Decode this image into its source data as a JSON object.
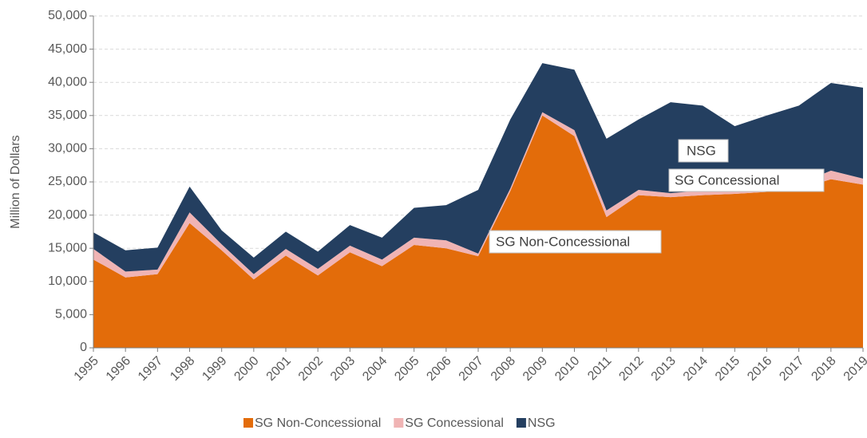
{
  "chart_data": {
    "type": "stacked_area",
    "y_label": "Million of Dollars",
    "categories": [
      "1995",
      "1996",
      "1997",
      "1998",
      "1999",
      "2000",
      "2001",
      "2002",
      "2003",
      "2004",
      "2005",
      "2006",
      "2007",
      "2008",
      "2009",
      "2010",
      "2011",
      "2012",
      "2013",
      "2014",
      "2015",
      "2016",
      "2017",
      "2018",
      "2019"
    ],
    "series": [
      {
        "name": "SG Non-Concessional",
        "color": "#e36c0a",
        "values": [
          13.3,
          10.6,
          11.1,
          18.8,
          14.7,
          10.3,
          13.9,
          10.9,
          14.4,
          12.3,
          15.5,
          15.0,
          13.8,
          23.6,
          35.0,
          31.9,
          19.7,
          23.0,
          22.7,
          23.0,
          23.2,
          23.5,
          23.9,
          25.4,
          24.6
        ]
      },
      {
        "name": "SG Concessional",
        "color": "#f0b4b4",
        "values": [
          1.6,
          0.9,
          0.7,
          1.6,
          0.9,
          0.8,
          1.0,
          1.0,
          1.0,
          1.0,
          1.1,
          1.2,
          0.4,
          0.4,
          0.5,
          0.9,
          1.0,
          0.8,
          0.6,
          0.7,
          0.7,
          0.8,
          0.8,
          1.3,
          0.9
        ]
      },
      {
        "name": "NSG",
        "color": "#243f60",
        "values": [
          2.5,
          3.2,
          3.3,
          3.9,
          2.1,
          2.5,
          2.6,
          2.6,
          3.1,
          3.3,
          4.5,
          5.3,
          9.6,
          10.4,
          7.4,
          9.1,
          10.8,
          10.6,
          13.7,
          12.8,
          9.5,
          10.7,
          11.8,
          13.2,
          13.7
        ]
      }
    ],
    "ylim": [
      0,
      50
    ],
    "yticks": [
      {
        "value": 0,
        "label": "0"
      },
      {
        "value": 5,
        "label": "5,000"
      },
      {
        "value": 10,
        "label": "10,000"
      },
      {
        "value": 15,
        "label": "15,000"
      },
      {
        "value": 20,
        "label": "20,000"
      },
      {
        "value": 25,
        "label": "25,000"
      },
      {
        "value": 30,
        "label": "30,000"
      },
      {
        "value": 35,
        "label": "35,000"
      },
      {
        "value": 40,
        "label": "40,000"
      },
      {
        "value": 45,
        "label": "45,000"
      },
      {
        "value": 50,
        "label": "50,000"
      }
    ],
    "grid": true,
    "annotations": [
      "NSG",
      "SG Concessional",
      "SG Non-Concessional"
    ]
  }
}
